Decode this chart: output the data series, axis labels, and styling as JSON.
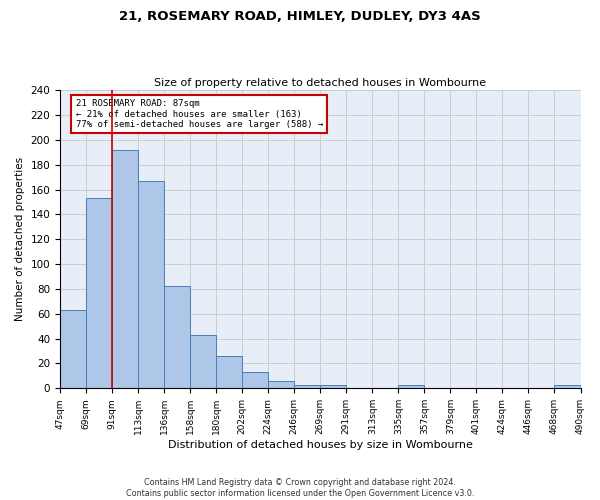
{
  "title1": "21, ROSEMARY ROAD, HIMLEY, DUDLEY, DY3 4AS",
  "title2": "Size of property relative to detached houses in Wombourne",
  "xlabel": "Distribution of detached houses by size in Wombourne",
  "ylabel": "Number of detached properties",
  "footnote": "Contains HM Land Registry data © Crown copyright and database right 2024.\nContains public sector information licensed under the Open Government Licence v3.0.",
  "bin_labels": [
    "47sqm",
    "69sqm",
    "91sqm",
    "113sqm",
    "136sqm",
    "158sqm",
    "180sqm",
    "202sqm",
    "224sqm",
    "246sqm",
    "269sqm",
    "291sqm",
    "313sqm",
    "335sqm",
    "357sqm",
    "379sqm",
    "401sqm",
    "424sqm",
    "446sqm",
    "468sqm",
    "490sqm"
  ],
  "bar_values": [
    63,
    153,
    192,
    167,
    82,
    43,
    26,
    13,
    6,
    3,
    3,
    0,
    0,
    3,
    0,
    0,
    0,
    0,
    0,
    3
  ],
  "bar_color": "#aec6e8",
  "bar_edge_color": "#4a7db5",
  "property_line_x": 2,
  "annotation_line1": "21 ROSEMARY ROAD: 87sqm",
  "annotation_line2": "← 21% of detached houses are smaller (163)",
  "annotation_line3": "77% of semi-detached houses are larger (588) →",
  "annotation_color": "#cc0000",
  "ylim": [
    0,
    240
  ],
  "yticks": [
    0,
    20,
    40,
    60,
    80,
    100,
    120,
    140,
    160,
    180,
    200,
    220,
    240
  ],
  "grid_color": "#cccccc",
  "bg_color": "#e8eef8"
}
